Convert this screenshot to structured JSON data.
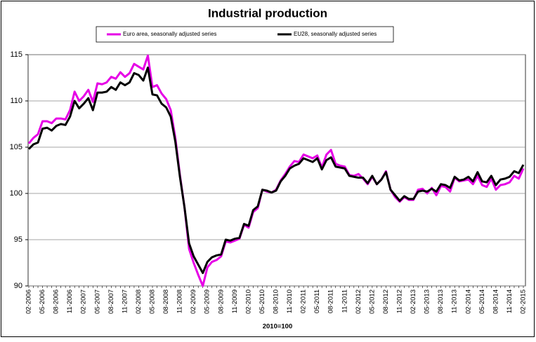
{
  "chart_data": {
    "type": "line",
    "title": "Industrial production",
    "xlabel": "2010=100",
    "categories": [
      "02-2006",
      null,
      null,
      "05-2006",
      null,
      null,
      "08-2006",
      null,
      null,
      "11-2006",
      null,
      null,
      "02-2007",
      null,
      null,
      "05-2007",
      null,
      null,
      "08-2007",
      null,
      null,
      "11-2007",
      null,
      null,
      "02-2008",
      null,
      null,
      "05-2008",
      null,
      null,
      "08-2008",
      null,
      null,
      "11-2008",
      null,
      null,
      "02-2009",
      null,
      null,
      "05-2009",
      null,
      null,
      "08-2009",
      null,
      null,
      "11-2009",
      null,
      null,
      "02-2010",
      null,
      null,
      "05-2010",
      null,
      null,
      "08-2010",
      null,
      null,
      "11-2010",
      null,
      null,
      "02-2011",
      null,
      null,
      "05-2011",
      null,
      null,
      "08-2011",
      null,
      null,
      "11-2011",
      null,
      null,
      "02-2012",
      null,
      null,
      "05-2012",
      null,
      null,
      "08-2012",
      null,
      null,
      "11-2012",
      null,
      null,
      "02-2013",
      null,
      null,
      "05-2013",
      null,
      null,
      "08-2013",
      null,
      null,
      "11-2013",
      null,
      null,
      "02-2014",
      null,
      null,
      "05-2014",
      null,
      null,
      "08-2014",
      null,
      null,
      "11-2014",
      null,
      null,
      "02-2015"
    ],
    "series": [
      {
        "name": "Euro area, seasonally adjusted series",
        "color": "#e600e6",
        "values": [
          105.4,
          106.0,
          106.4,
          107.8,
          107.8,
          107.6,
          108.1,
          108.1,
          108.0,
          109.0,
          111.0,
          110.0,
          110.5,
          111.2,
          109.9,
          111.9,
          111.8,
          112.0,
          112.6,
          112.4,
          113.1,
          112.6,
          113.0,
          114.0,
          113.7,
          113.4,
          114.9,
          111.5,
          111.7,
          110.8,
          110.2,
          109.0,
          106.0,
          102.0,
          98.5,
          94.0,
          92.5,
          91.2,
          90.0,
          92.0,
          92.6,
          92.8,
          93.2,
          94.8,
          94.7,
          94.9,
          95.1,
          96.6,
          96.3,
          98.0,
          98.4,
          100.4,
          100.2,
          100.1,
          100.4,
          101.4,
          102.1,
          102.9,
          103.5,
          103.4,
          104.2,
          104.0,
          103.8,
          104.1,
          102.8,
          104.2,
          104.7,
          103.2,
          103.0,
          102.9,
          102.0,
          101.9,
          102.1,
          101.6,
          101.0,
          101.8,
          101.0,
          101.5,
          102.4,
          100.4,
          99.6,
          99.1,
          99.6,
          99.3,
          99.3,
          100.4,
          100.5,
          100.0,
          100.6,
          99.8,
          100.8,
          100.7,
          100.2,
          101.7,
          101.3,
          101.4,
          101.5,
          101.0,
          101.9,
          100.9,
          100.7,
          101.6,
          100.4,
          100.9,
          101.0,
          101.2,
          101.9,
          101.6,
          102.7
        ]
      },
      {
        "name": "EU28, seasonally adjusted series",
        "color": "#000000",
        "values": [
          104.8,
          105.3,
          105.5,
          107.0,
          107.1,
          106.8,
          107.3,
          107.5,
          107.4,
          108.3,
          110.0,
          109.2,
          109.7,
          110.3,
          109.0,
          110.9,
          110.9,
          111.0,
          111.5,
          111.2,
          112.0,
          111.7,
          112.0,
          113.0,
          112.8,
          112.2,
          113.6,
          110.7,
          110.6,
          109.7,
          109.3,
          108.3,
          105.6,
          101.8,
          98.5,
          94.6,
          93.2,
          92.3,
          91.4,
          92.6,
          93.1,
          93.3,
          93.4,
          95.0,
          94.9,
          95.1,
          95.2,
          96.7,
          96.5,
          98.2,
          98.6,
          100.4,
          100.3,
          100.1,
          100.3,
          101.3,
          101.9,
          102.7,
          103.0,
          103.2,
          103.8,
          103.6,
          103.4,
          103.8,
          102.6,
          103.6,
          103.9,
          102.9,
          102.8,
          102.7,
          101.9,
          101.8,
          101.7,
          101.7,
          101.1,
          101.9,
          101.0,
          101.5,
          102.3,
          100.4,
          99.8,
          99.2,
          99.7,
          99.4,
          99.4,
          100.2,
          100.3,
          100.2,
          100.5,
          100.2,
          101.0,
          100.9,
          100.6,
          101.8,
          101.4,
          101.5,
          101.8,
          101.3,
          102.3,
          101.3,
          101.2,
          101.9,
          100.9,
          101.5,
          101.6,
          101.8,
          102.4,
          102.2,
          103.1
        ]
      }
    ],
    "ylim": [
      90,
      115
    ],
    "yticks": [
      90,
      95,
      100,
      105,
      110,
      115
    ],
    "grid": true
  }
}
